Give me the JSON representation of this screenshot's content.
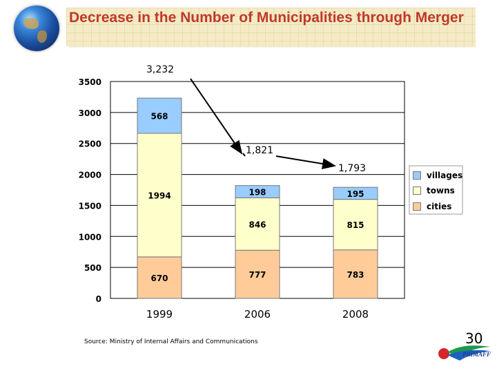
{
  "header": {
    "title": "Decrease in the Number of Municipalities through Merger"
  },
  "chart_data": {
    "type": "bar",
    "stacked": true,
    "categories": [
      "1999",
      "2006",
      "2008"
    ],
    "series": [
      {
        "name": "cities",
        "values": [
          670,
          777,
          783
        ],
        "color": "#ffcc99"
      },
      {
        "name": "towns",
        "values": [
          1994,
          846,
          815
        ],
        "color": "#ffffcc"
      },
      {
        "name": "villages",
        "values": [
          568,
          198,
          195
        ],
        "color": "#99ccff"
      }
    ],
    "totals": [
      "3,232",
      "1,821",
      "1,793"
    ],
    "ylim": [
      0,
      3500
    ],
    "yticks": [
      0,
      500,
      1000,
      1500,
      2000,
      2500,
      3000,
      3500
    ],
    "grid": true,
    "legend": "right"
  },
  "source": "Source: Ministry of Internal Affairs and Communications",
  "page_number": "30",
  "logo": {
    "text": "PRIMAFF",
    "icon": "primaff-logo"
  }
}
